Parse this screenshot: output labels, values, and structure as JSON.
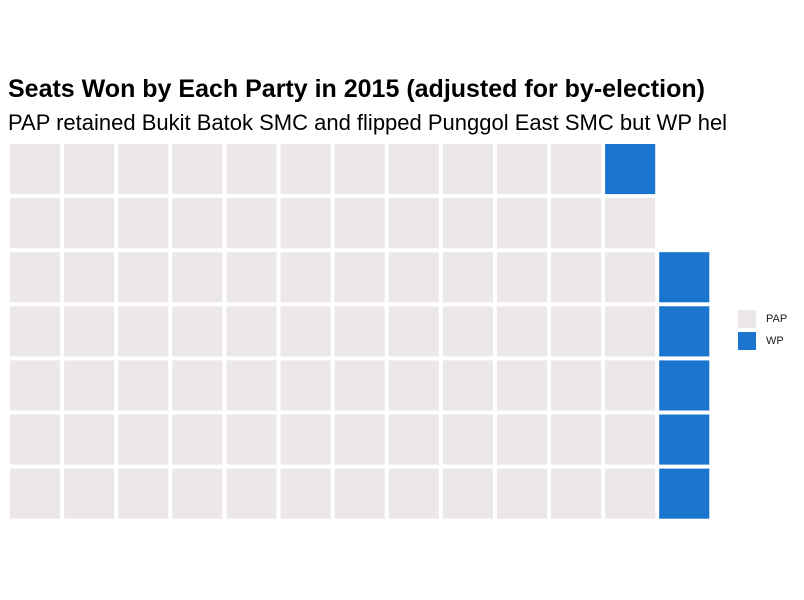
{
  "chart_data": {
    "type": "waffle",
    "title": "Seats Won by Each Party in 2015 (adjusted for by-election)",
    "subtitle": "PAP retained Bukit Batok SMC and flipped Punggol East SMC but WP hel",
    "rows": 7,
    "categories": [
      "PAP",
      "WP"
    ],
    "values": [
      83,
      6
    ],
    "colors": {
      "PAP": "#ece8e7",
      "WP": "#1a75cf"
    },
    "legend_position": "right",
    "grid": false
  },
  "legend": {
    "items": [
      {
        "label": "PAP",
        "color": "#ece8e7"
      },
      {
        "label": "WP",
        "color": "#1a75cf"
      }
    ]
  }
}
